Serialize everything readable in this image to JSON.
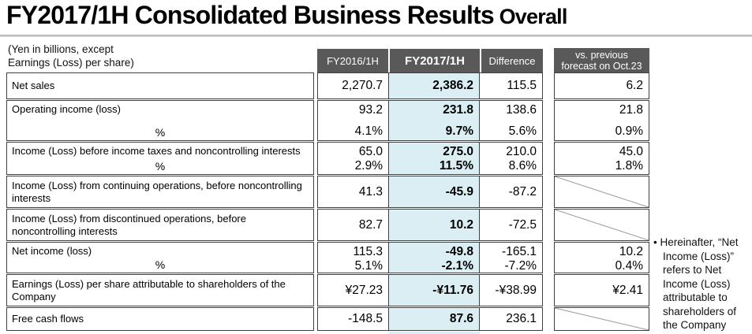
{
  "title": {
    "main": "FY2017/1H Consolidated Business Results",
    "suffix": " Overall"
  },
  "units_note": {
    "line1": "(Yen in billions, except",
    "line2": "Earnings (Loss) per share)"
  },
  "columns": {
    "c2016": "FY2016/1H",
    "c2017": "FY2017/1H",
    "diff": "Difference",
    "forecast_line1": "vs. previous",
    "forecast_line2": "forecast on Oct.23"
  },
  "colors": {
    "header_bg": "#595959",
    "highlight_column_bg": "#daeef3",
    "border": "#404040",
    "title_rule": "#c4c4c4"
  },
  "rows": [
    {
      "label": "Net sales",
      "v2016": "2,270.7",
      "v2017": "2,386.2",
      "diff": "115.5",
      "forecast": "6.2"
    },
    {
      "label": "Operating income (loss)",
      "pct_label": "%",
      "v2016": "93.2",
      "v2017": "231.8",
      "diff": "138.6",
      "forecast": "21.8",
      "p2016": "4.1%",
      "p2017": "9.7%",
      "pdiff": "5.6%",
      "pforecast": "0.9%"
    },
    {
      "label": "Income (Loss) before income taxes and noncontrolling interests",
      "pct_label": "%",
      "v2016": "65.0",
      "v2017": "275.0",
      "diff": "210.0",
      "forecast": "45.0",
      "p2016": "2.9%",
      "p2017": "11.5%",
      "pdiff": "8.6%",
      "pforecast": "1.8%"
    },
    {
      "label": "Income (Loss) from continuing operations, before noncontrolling interests",
      "v2016": "41.3",
      "v2017": "-45.9",
      "diff": "-87.2",
      "forecast": ""
    },
    {
      "label": "Income (Loss) from discontinued operations, before noncontrolling interests",
      "v2016": "82.7",
      "v2017": "10.2",
      "diff": "-72.5",
      "forecast": ""
    },
    {
      "label": "Net income (loss)",
      "pct_label": "%",
      "v2016": "115.3",
      "v2017": "-49.8",
      "diff": "-165.1",
      "forecast": "10.2",
      "p2016": "5.1%",
      "p2017": "-2.1%",
      "pdiff": "-7.2%",
      "pforecast": "0.4%"
    },
    {
      "label": "Earnings (Loss) per share attributable to shareholders of the Company",
      "v2016": "¥27.23",
      "v2017": "-¥11.76",
      "diff": "-¥38.99",
      "forecast": "¥2.41"
    },
    {
      "label": "Free cash flows",
      "v2016": "-148.5",
      "v2017": "87.6",
      "diff": "236.1",
      "forecast": ""
    }
  ],
  "side_note": {
    "bullet": "•",
    "text": "Hereinafter, “Net Income (Loss)” refers to Net Income (Loss) attributable to shareholders of the Company"
  }
}
